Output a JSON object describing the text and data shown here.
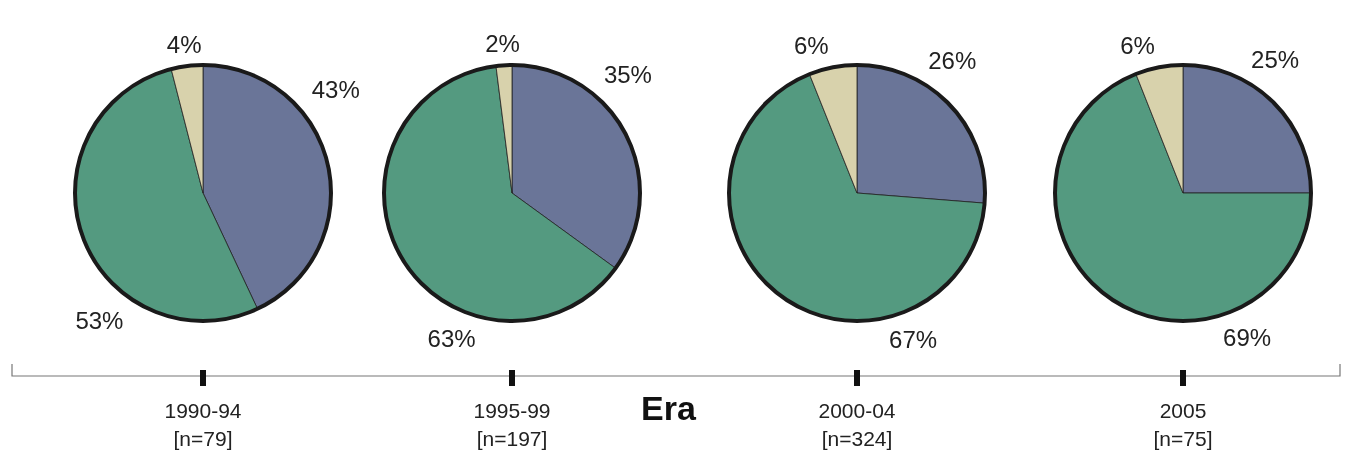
{
  "chart_data": [
    {
      "type": "pie",
      "title": "1990-94",
      "subtitle": "[n=79]",
      "categories": [
        null,
        null,
        null
      ],
      "values": [
        43,
        53,
        4
      ],
      "colors": [
        "#6a7598",
        "#549a80",
        "#d8d2ac"
      ],
      "value_labels": [
        "43%",
        "53%",
        "4%"
      ]
    },
    {
      "type": "pie",
      "title": "1995-99",
      "subtitle": "[n=197]",
      "xlabel": "Era",
      "categories": [
        null,
        null,
        null
      ],
      "values": [
        35,
        63,
        2
      ],
      "colors": [
        "#6a7598",
        "#549a80",
        "#d8d2ac"
      ],
      "value_labels": [
        "35%",
        "63%",
        "2%"
      ]
    },
    {
      "type": "pie",
      "title": "2000-04",
      "subtitle": "[n=324]",
      "categories": [
        null,
        null,
        null
      ],
      "values": [
        26,
        67,
        6
      ],
      "colors": [
        "#6a7598",
        "#549a80",
        "#d8d2ac"
      ],
      "value_labels": [
        "26%",
        "67%",
        "6%"
      ]
    },
    {
      "type": "pie",
      "title": "2005",
      "subtitle": "[n=75]",
      "categories": [
        null,
        null,
        null
      ],
      "values": [
        25,
        69,
        6
      ],
      "colors": [
        "#6a7598",
        "#549a80",
        "#d8d2ac"
      ],
      "value_labels": [
        "25%",
        "69%",
        "6%"
      ]
    }
  ]
}
